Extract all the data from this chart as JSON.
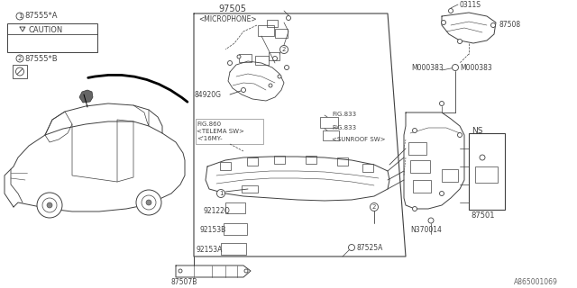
{
  "bg_color": "#ffffff",
  "lc": "#404040",
  "tc": "#404040",
  "gray": "#888888",
  "labels": {
    "main_part": "97505",
    "microphone": "<MICROPHONE>",
    "p84920G": "84920G",
    "pFIG860": "FIG.860",
    "pTELEMA": "<TELEMA SW>",
    "p16MY": "<'16MY-",
    "pFIG833a": "FIG.833",
    "pFIG833b": "FIG.833",
    "pSUNROOF": "<SUNROOF SW>",
    "p92122Q": "92122Q",
    "p92153B": "92153B",
    "p92153A": "92153A",
    "p87507B": "87507B",
    "p87525A": "87525A",
    "p87555A": "87555*A",
    "p87555B": "87555*B",
    "p0311S": "0311S",
    "p87508": "87508",
    "pM000383": "M000383",
    "pNS": "NS",
    "pN370014": "N370014",
    "p87501": "87501",
    "fig_id": "A865001069"
  }
}
